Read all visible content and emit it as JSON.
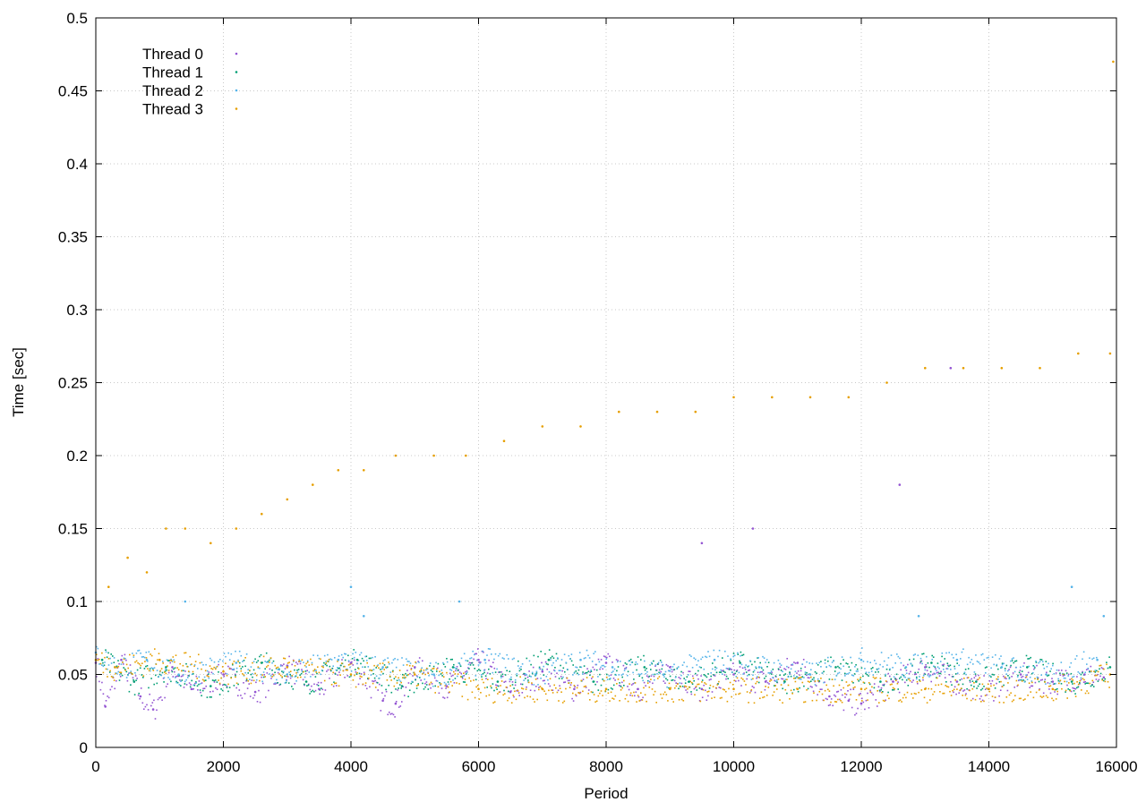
{
  "chart_data": {
    "type": "scatter",
    "title": "",
    "xlabel": "Period",
    "ylabel": "Time [sec]",
    "xlim": [
      0,
      16000
    ],
    "ylim": [
      0,
      0.5
    ],
    "x_ticks": [
      "0",
      "2000",
      "4000",
      "6000",
      "8000",
      "10000",
      "12000",
      "14000",
      "16000"
    ],
    "y_ticks": [
      "0",
      "0.05",
      "0.1",
      "0.15",
      "0.2",
      "0.25",
      "0.3",
      "0.35",
      "0.4",
      "0.45",
      "0.5"
    ],
    "x_tick_values": [
      0,
      2000,
      4000,
      6000,
      8000,
      10000,
      12000,
      14000,
      16000
    ],
    "y_tick_values": [
      0,
      0.05,
      0.1,
      0.15,
      0.2,
      0.25,
      0.3,
      0.35,
      0.4,
      0.45,
      0.5
    ],
    "grid": true,
    "legend_position": "top-left",
    "series": [
      {
        "name": "Thread 0",
        "color": "#9455d3",
        "marker": "dot",
        "points": [
          [
            0,
            0.058
          ],
          [
            150,
            0.028
          ],
          [
            400,
            0.06
          ],
          [
            700,
            0.035
          ],
          [
            900,
            0.026
          ],
          [
            1200,
            0.055
          ],
          [
            1500,
            0.04
          ],
          [
            2000,
            0.05
          ],
          [
            2500,
            0.038
          ],
          [
            3000,
            0.056
          ],
          [
            3500,
            0.04
          ],
          [
            4000,
            0.058
          ],
          [
            4500,
            0.032
          ],
          [
            4700,
            0.03
          ],
          [
            5000,
            0.055
          ],
          [
            5500,
            0.042
          ],
          [
            6000,
            0.06
          ],
          [
            6500,
            0.038
          ],
          [
            7000,
            0.052
          ],
          [
            7500,
            0.04
          ],
          [
            8000,
            0.058
          ],
          [
            8500,
            0.04
          ],
          [
            9000,
            0.055
          ],
          [
            9500,
            0.04
          ],
          [
            10000,
            0.05
          ],
          [
            10500,
            0.045
          ],
          [
            11000,
            0.058
          ],
          [
            11500,
            0.035
          ],
          [
            11800,
            0.032
          ],
          [
            12000,
            0.03
          ],
          [
            12500,
            0.045
          ],
          [
            13000,
            0.055
          ],
          [
            13500,
            0.045
          ],
          [
            14000,
            0.04
          ],
          [
            14500,
            0.05
          ],
          [
            15000,
            0.045
          ],
          [
            15500,
            0.05
          ],
          [
            15800,
            0.048
          ],
          [
            9500,
            0.14
          ],
          [
            10300,
            0.15
          ],
          [
            12600,
            0.18
          ],
          [
            13400,
            0.26
          ]
        ]
      },
      {
        "name": "Thread 1",
        "color": "#009e73",
        "marker": "dot",
        "points": [
          [
            100,
            0.06
          ],
          [
            600,
            0.045
          ],
          [
            1100,
            0.055
          ],
          [
            1800,
            0.042
          ],
          [
            2600,
            0.058
          ],
          [
            3300,
            0.045
          ],
          [
            4100,
            0.06
          ],
          [
            4800,
            0.042
          ],
          [
            5600,
            0.055
          ],
          [
            6300,
            0.045
          ],
          [
            7100,
            0.06
          ],
          [
            7800,
            0.045
          ],
          [
            8600,
            0.055
          ],
          [
            9300,
            0.045
          ],
          [
            10100,
            0.058
          ],
          [
            10800,
            0.045
          ],
          [
            11600,
            0.055
          ],
          [
            12300,
            0.045
          ],
          [
            13100,
            0.058
          ],
          [
            13800,
            0.045
          ],
          [
            14600,
            0.055
          ],
          [
            15300,
            0.045
          ],
          [
            15900,
            0.055
          ]
        ]
      },
      {
        "name": "Thread 2",
        "color": "#56b4e9",
        "marker": "dot",
        "points": [
          [
            0,
            0.065
          ],
          [
            300,
            0.055
          ],
          [
            800,
            0.06
          ],
          [
            1300,
            0.05
          ],
          [
            1400,
            0.1
          ],
          [
            2200,
            0.058
          ],
          [
            3000,
            0.05
          ],
          [
            3800,
            0.06
          ],
          [
            4000,
            0.11
          ],
          [
            4200,
            0.09
          ],
          [
            4500,
            0.055
          ],
          [
            5300,
            0.05
          ],
          [
            5700,
            0.1
          ],
          [
            6100,
            0.06
          ],
          [
            6900,
            0.05
          ],
          [
            7600,
            0.06
          ],
          [
            8100,
            0.055
          ],
          [
            8900,
            0.05
          ],
          [
            9700,
            0.06
          ],
          [
            10400,
            0.055
          ],
          [
            11200,
            0.05
          ],
          [
            12000,
            0.06
          ],
          [
            12700,
            0.055
          ],
          [
            12900,
            0.09
          ],
          [
            13500,
            0.06
          ],
          [
            14200,
            0.055
          ],
          [
            14900,
            0.05
          ],
          [
            15300,
            0.11
          ],
          [
            15700,
            0.06
          ],
          [
            15800,
            0.09
          ]
        ]
      },
      {
        "name": "Thread 3",
        "color": "#e69f00",
        "marker": "dot",
        "points": [
          [
            0,
            0.06
          ],
          [
            200,
            0.11
          ],
          [
            500,
            0.13
          ],
          [
            800,
            0.12
          ],
          [
            1100,
            0.15
          ],
          [
            1400,
            0.15
          ],
          [
            1800,
            0.14
          ],
          [
            2200,
            0.15
          ],
          [
            2600,
            0.16
          ],
          [
            3000,
            0.17
          ],
          [
            3400,
            0.18
          ],
          [
            3800,
            0.19
          ],
          [
            4200,
            0.19
          ],
          [
            4700,
            0.2
          ],
          [
            5300,
            0.2
          ],
          [
            5800,
            0.2
          ],
          [
            6400,
            0.21
          ],
          [
            7000,
            0.22
          ],
          [
            7600,
            0.22
          ],
          [
            8200,
            0.23
          ],
          [
            8800,
            0.23
          ],
          [
            9400,
            0.23
          ],
          [
            10000,
            0.24
          ],
          [
            10600,
            0.24
          ],
          [
            11200,
            0.24
          ],
          [
            11800,
            0.24
          ],
          [
            12400,
            0.25
          ],
          [
            13000,
            0.26
          ],
          [
            13600,
            0.26
          ],
          [
            14200,
            0.26
          ],
          [
            14800,
            0.26
          ],
          [
            15400,
            0.27
          ],
          [
            15900,
            0.27
          ],
          [
            15950,
            0.47
          ],
          [
            300,
            0.055
          ],
          [
            1000,
            0.06
          ],
          [
            2000,
            0.052
          ],
          [
            3000,
            0.055
          ],
          [
            4000,
            0.05
          ],
          [
            5000,
            0.05
          ],
          [
            6000,
            0.04
          ],
          [
            7000,
            0.04
          ],
          [
            8000,
            0.04
          ],
          [
            9000,
            0.04
          ],
          [
            10000,
            0.04
          ],
          [
            11000,
            0.04
          ],
          [
            12000,
            0.04
          ],
          [
            13000,
            0.04
          ],
          [
            14000,
            0.04
          ],
          [
            15000,
            0.04
          ],
          [
            15900,
            0.05
          ]
        ]
      }
    ]
  }
}
